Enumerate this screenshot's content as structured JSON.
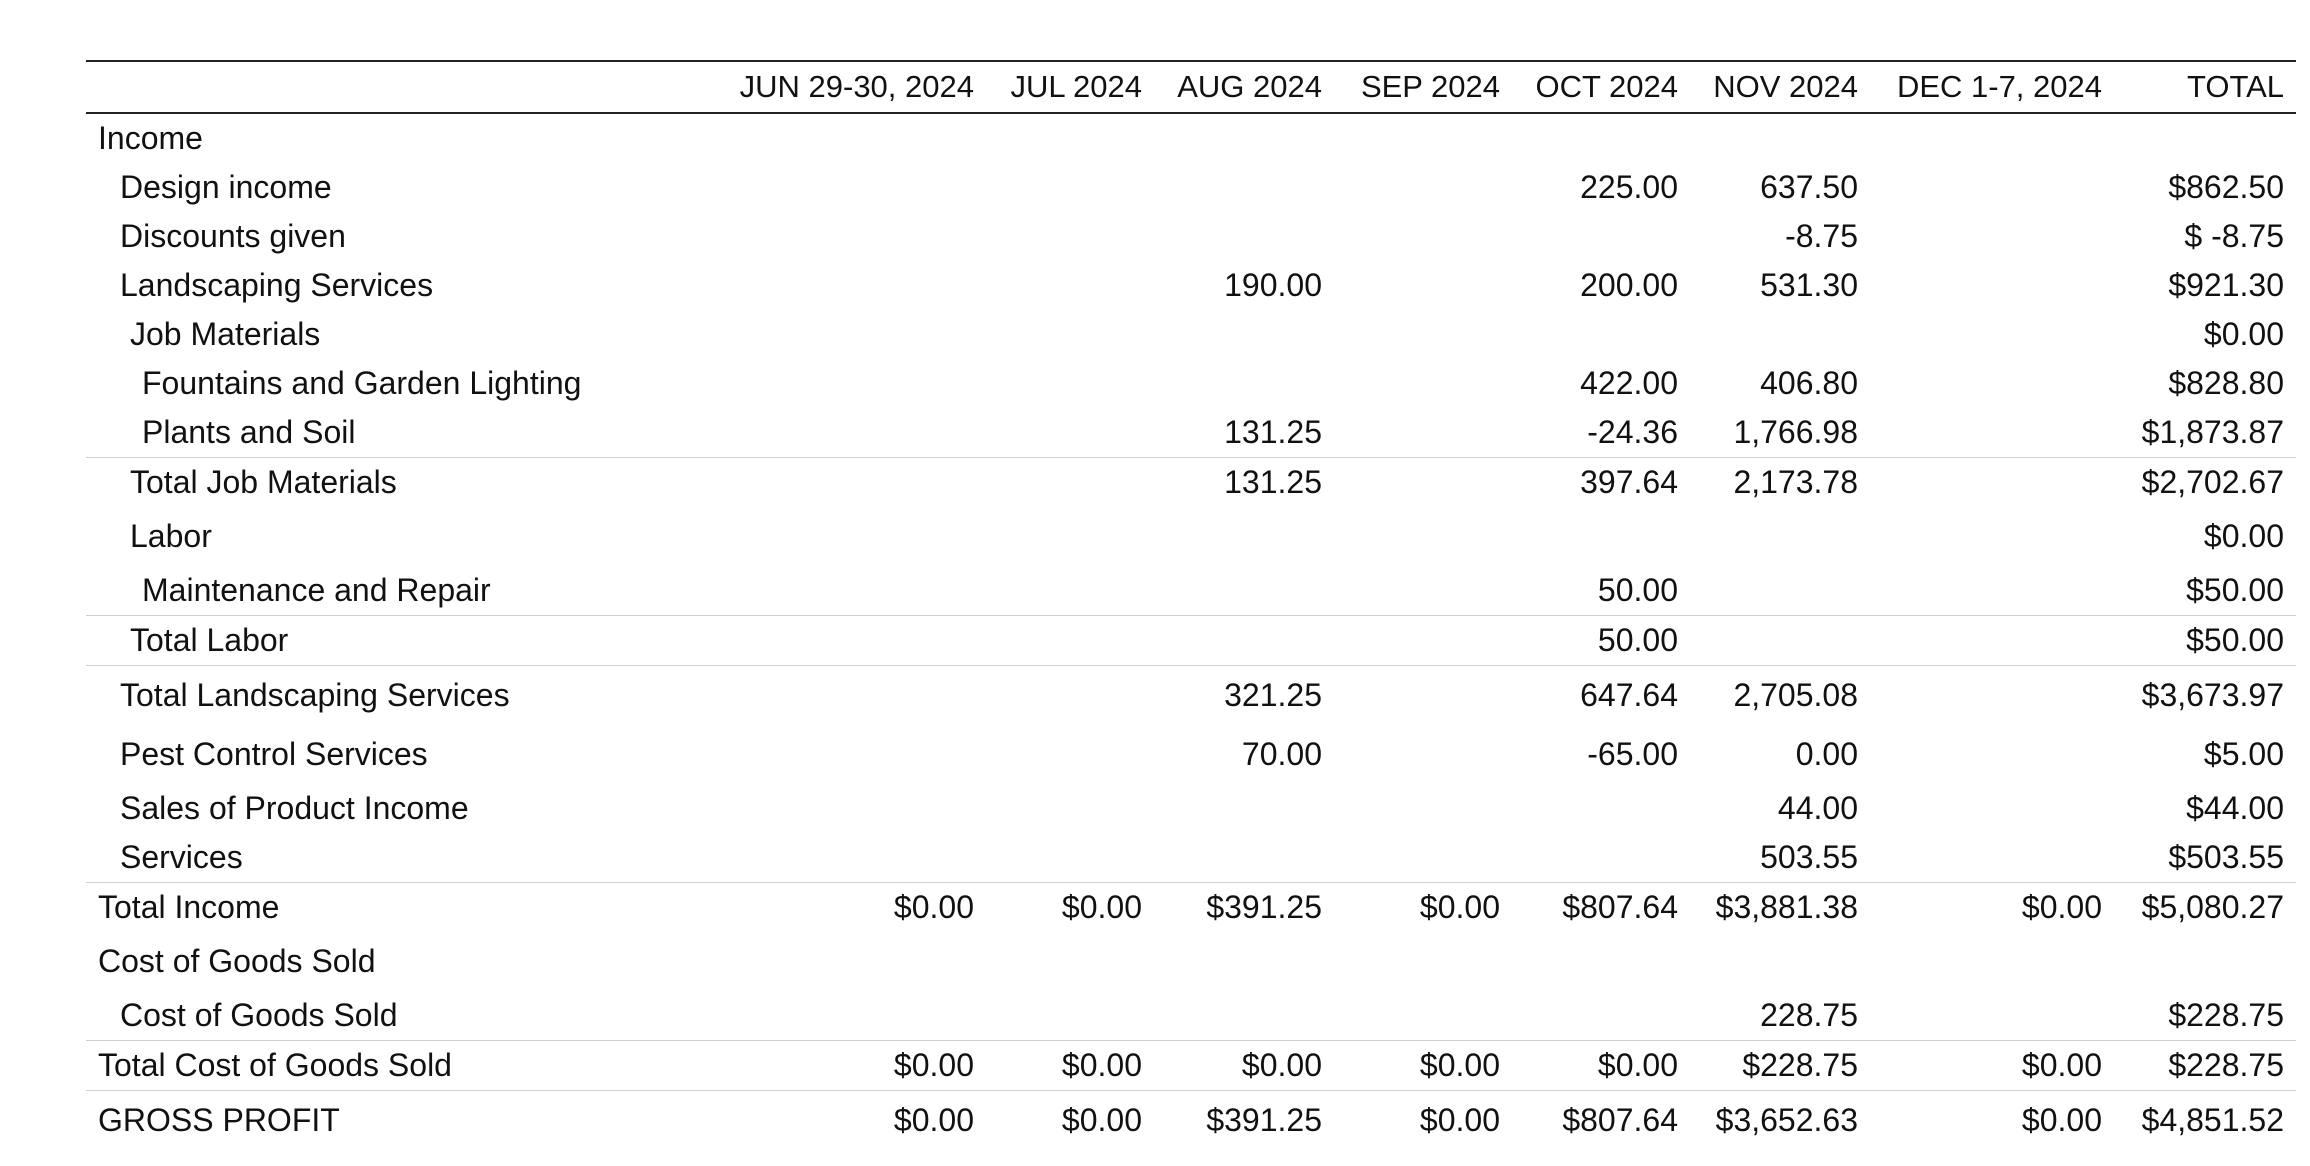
{
  "columns": [
    "JUN 29-30, 2024",
    "JUL 2024",
    "AUG 2024",
    "SEP 2024",
    "OCT 2024",
    "NOV 2024",
    "DEC 1-7, 2024",
    "TOTAL"
  ],
  "rows": [
    {
      "label": "Income",
      "values": [
        "",
        "",
        "",
        "",
        "",
        "",
        "",
        ""
      ]
    },
    {
      "label": "Design income",
      "values": [
        "",
        "",
        "",
        "",
        "225.00",
        "637.50",
        "",
        "$862.50"
      ]
    },
    {
      "label": "Discounts given",
      "values": [
        "",
        "",
        "",
        "",
        "",
        "-8.75",
        "",
        "$ -8.75"
      ]
    },
    {
      "label": "Landscaping Services",
      "values": [
        "",
        "",
        "190.00",
        "",
        "200.00",
        "531.30",
        "",
        "$921.30"
      ]
    },
    {
      "label": "Job Materials",
      "values": [
        "",
        "",
        "",
        "",
        "",
        "",
        "",
        "$0.00"
      ]
    },
    {
      "label": "Fountains and Garden Lighting",
      "values": [
        "",
        "",
        "",
        "",
        "422.00",
        "406.80",
        "",
        "$828.80"
      ]
    },
    {
      "label": "Plants and Soil",
      "values": [
        "",
        "",
        "131.25",
        "",
        "-24.36",
        "1,766.98",
        "",
        "$1,873.87"
      ]
    },
    {
      "label": "Total Job Materials",
      "values": [
        "",
        "",
        "131.25",
        "",
        "397.64",
        "2,173.78",
        "",
        "$2,702.67"
      ]
    },
    {
      "label": "Labor",
      "values": [
        "",
        "",
        "",
        "",
        "",
        "",
        "",
        "$0.00"
      ]
    },
    {
      "label": "Maintenance and Repair",
      "values": [
        "",
        "",
        "",
        "",
        "50.00",
        "",
        "",
        "$50.00"
      ]
    },
    {
      "label": "Total Labor",
      "values": [
        "",
        "",
        "",
        "",
        "50.00",
        "",
        "",
        "$50.00"
      ]
    },
    {
      "label": "Total Landscaping Services",
      "values": [
        "",
        "",
        "321.25",
        "",
        "647.64",
        "2,705.08",
        "",
        "$3,673.97"
      ]
    },
    {
      "label": "Pest Control Services",
      "values": [
        "",
        "",
        "70.00",
        "",
        "-65.00",
        "0.00",
        "",
        "$5.00"
      ]
    },
    {
      "label": "Sales of Product Income",
      "values": [
        "",
        "",
        "",
        "",
        "",
        "44.00",
        "",
        "$44.00"
      ]
    },
    {
      "label": "Services",
      "values": [
        "",
        "",
        "",
        "",
        "",
        "503.55",
        "",
        "$503.55"
      ]
    },
    {
      "label": "Total Income",
      "values": [
        "$0.00",
        "$0.00",
        "$391.25",
        "$0.00",
        "$807.64",
        "$3,881.38",
        "$0.00",
        "$5,080.27"
      ]
    },
    {
      "label": "Cost of Goods Sold",
      "values": [
        "",
        "",
        "",
        "",
        "",
        "",
        "",
        ""
      ]
    },
    {
      "label": "Cost of Goods Sold",
      "values": [
        "",
        "",
        "",
        "",
        "",
        "228.75",
        "",
        "$228.75"
      ]
    },
    {
      "label": "Total Cost of Goods Sold",
      "values": [
        "$0.00",
        "$0.00",
        "$0.00",
        "$0.00",
        "$0.00",
        "$228.75",
        "$0.00",
        "$228.75"
      ]
    },
    {
      "label": "GROSS PROFIT",
      "values": [
        "$0.00",
        "$0.00",
        "$391.25",
        "$0.00",
        "$807.64",
        "$3,652.63",
        "$0.00",
        "$4,851.52"
      ]
    }
  ]
}
